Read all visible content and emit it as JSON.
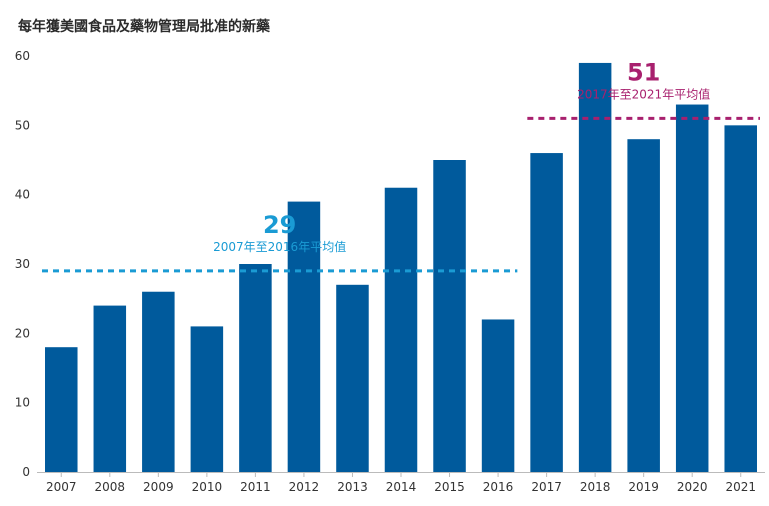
{
  "chart_data": {
    "type": "bar",
    "title": "每年獲美國食品及藥物管理局批准的新藥",
    "categories": [
      "2007",
      "2008",
      "2009",
      "2010",
      "2011",
      "2012",
      "2013",
      "2014",
      "2015",
      "2016",
      "2017",
      "2018",
      "2019",
      "2020",
      "2021"
    ],
    "values": [
      18,
      24,
      26,
      21,
      30,
      39,
      27,
      41,
      45,
      22,
      46,
      59,
      48,
      53,
      50
    ],
    "ylim": [
      0,
      60
    ],
    "yticks": [
      0,
      10,
      20,
      30,
      40,
      50,
      60
    ],
    "grid": false,
    "bar_color": "#005a9c",
    "averages": [
      {
        "value": 29,
        "label_value": "29",
        "label": "2007年至2016年平均值",
        "from": "2007",
        "to": "2016",
        "color": "#1a9bd4"
      },
      {
        "value": 51,
        "label_value": "51",
        "label": "2017年至2021年平均值",
        "from": "2017",
        "to": "2021",
        "color": "#a8206e"
      }
    ]
  }
}
